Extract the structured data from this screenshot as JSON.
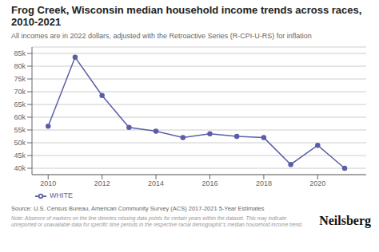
{
  "chart_data": {
    "type": "line",
    "title": "Frog Creek, Wisconsin median household income trends across races,\n2010-2021",
    "subtitle": "All incomes are in 2022 dollars, adjusted with the Retroactive Series (R-CPI-U-RS) for inflation",
    "annotations": [
      "Source: U.S. Census Bureau, American Community Survey (ACS) 2017-2021 5-Year Estimates",
      "Note: Absence of markers on the line denotes missing data points for certain years within the dataset. This may indicate unreported or unavailable data for specific time periods in the respective racial demographic's median household income trend.",
      "Neilsberg"
    ],
    "x": [
      2010,
      2011,
      2012,
      2013,
      2014,
      2015,
      2016,
      2017,
      2018,
      2019,
      2020,
      2021
    ],
    "series": [
      {
        "name": "WHITE",
        "color": "#5b5ea6",
        "marker": "o",
        "values": [
          56500,
          83500,
          68500,
          56000,
          54500,
          52000,
          53500,
          52500,
          52000,
          41500,
          49000,
          40000
        ]
      }
    ],
    "xlim": [
      2009.4,
      2021.8
    ],
    "xticks": [
      2010,
      2012,
      2014,
      2016,
      2018,
      2020
    ],
    "ylim": [
      37500,
      87500
    ],
    "yticks": [
      {
        "value": 40000,
        "label": "40k"
      },
      {
        "value": 45000,
        "label": "45k"
      },
      {
        "value": 50000,
        "label": "50k"
      },
      {
        "value": 55000,
        "label": "55k"
      },
      {
        "value": 60000,
        "label": "60k"
      },
      {
        "value": 65000,
        "label": "65k"
      },
      {
        "value": 70000,
        "label": "70k"
      },
      {
        "value": 75000,
        "label": "75k"
      },
      {
        "value": 80000,
        "label": "80k"
      },
      {
        "value": 85000,
        "label": "85k"
      }
    ],
    "grid": true,
    "legend": "bottom"
  }
}
